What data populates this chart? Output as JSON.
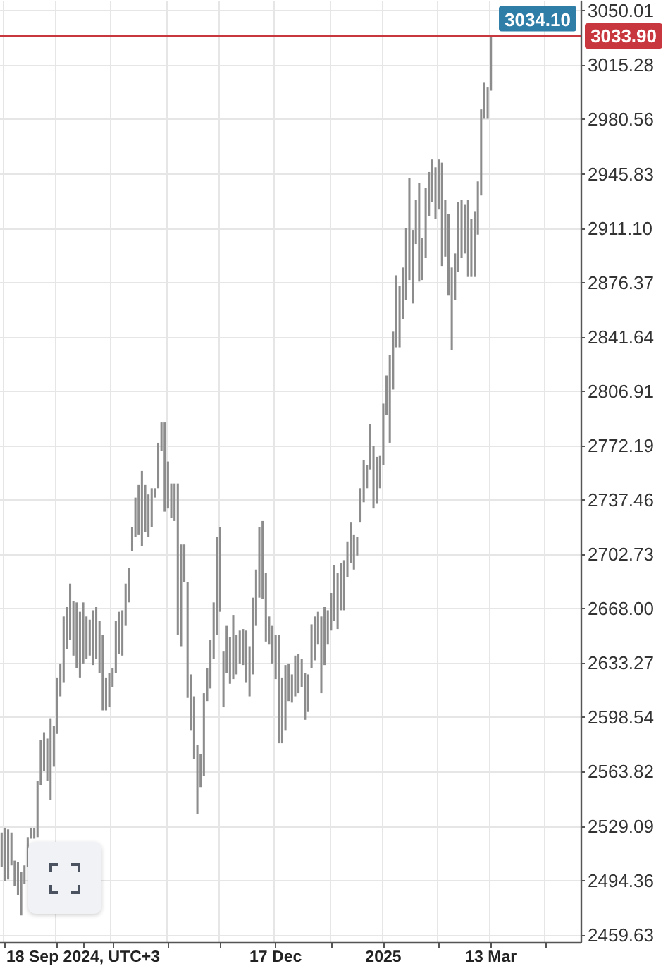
{
  "chart_data": {
    "type": "bar",
    "categories": [
      null,
      null,
      null,
      null,
      null,
      null,
      null,
      null,
      null,
      null,
      null,
      null,
      null,
      null,
      null,
      null,
      null,
      null,
      null,
      null,
      null,
      null,
      null,
      null,
      null,
      "18 Sep 2024, UTC+3",
      null,
      null,
      null,
      null,
      null,
      null,
      null,
      null,
      null,
      null,
      null,
      null,
      null,
      null,
      null,
      null,
      null,
      null,
      null,
      null,
      null,
      null,
      null,
      null,
      null,
      null,
      null,
      null,
      null,
      null,
      null,
      null,
      null,
      null,
      null,
      null,
      null,
      null,
      null,
      null,
      null,
      null,
      null,
      null,
      null,
      null,
      null,
      null,
      null,
      null,
      null,
      null,
      null,
      null,
      null,
      null,
      null,
      null,
      "17 Dec",
      null,
      null,
      null,
      null,
      null,
      null,
      null,
      null,
      null,
      null,
      null,
      null,
      null,
      null,
      null,
      null,
      null,
      null,
      null,
      null,
      null,
      null,
      null,
      null,
      null,
      null,
      null,
      null,
      null,
      null,
      null,
      null,
      "2025",
      null,
      null,
      null,
      null,
      null,
      null,
      null,
      null,
      null,
      null,
      null,
      null,
      null,
      null,
      null,
      null,
      null,
      null,
      null,
      null,
      null,
      null,
      null,
      null,
      null,
      null,
      null,
      null,
      null,
      null,
      null,
      null,
      "13 Mar",
      null,
      null,
      null,
      null,
      null,
      null,
      null,
      null,
      null,
      null,
      null,
      null,
      null,
      null,
      null,
      null,
      null,
      null,
      null,
      null,
      null,
      null,
      null,
      null,
      null,
      null,
      null
    ],
    "base": [
      2503,
      2494,
      2495,
      2504,
      2491,
      2485,
      2472,
      2492,
      2503,
      2521,
      2521,
      2522,
      2555,
      2564,
      2558,
      2546,
      2567,
      2588,
      2612,
      2621,
      2642,
      2648,
      2638,
      2630,
      2624,
      2633,
      2636,
      2638,
      2632,
      2636,
      2627,
      2603,
      2603,
      2605,
      2618,
      2627,
      2639,
      2638,
      2657,
      2672,
      2705,
      2714,
      2715,
      2708,
      2717,
      2714,
      2720,
      2739,
      2745,
      2769,
      2730,
      2732,
      2726,
      2724,
      2651,
      2644,
      2685,
      2611,
      2590,
      2572,
      2537,
      2554,
      2561,
      2609,
      2617,
      2636,
      2651,
      2666,
      2605,
      2627,
      2620,
      2623,
      2626,
      2633,
      2632,
      2621,
      2612,
      2626,
      2657,
      2675,
      2674,
      2647,
      2645,
      2633,
      2623,
      2582,
      2582,
      2590,
      2609,
      2608,
      2612,
      2614,
      2618,
      2597,
      2602,
      2630,
      2635,
      2645,
      2614,
      2632,
      2645,
      2654,
      2660,
      2655,
      2667,
      2667,
      2688,
      2697,
      2693,
      2702,
      2723,
      2736,
      2745,
      2757,
      2732,
      2735,
      2745,
      2760,
      2792,
      2774,
      2808,
      2835,
      2835,
      2853,
      2865,
      2878,
      2863,
      2901,
      2877,
      2878,
      2892,
      2919,
      2928,
      2917,
      2923,
      2887,
      2893,
      2868,
      2833,
      2865,
      2883,
      2892,
      2895,
      2880,
      2880,
      2880,
      2907,
      2932,
      2981,
      2981,
      2999,
      null,
      null,
      null,
      null,
      null,
      null,
      null,
      null,
      null,
      null,
      null,
      null,
      null,
      null,
      null,
      null,
      null,
      null,
      null,
      null,
      null,
      null,
      null,
      null,
      null,
      null,
      null
    ],
    "values": [
      22,
      34,
      32,
      21,
      16,
      21,
      28,
      12,
      19,
      7,
      7,
      36,
      29,
      25,
      27,
      52,
      26,
      36,
      21,
      42,
      27,
      36,
      35,
      42,
      42,
      39,
      27,
      23,
      35,
      33,
      33,
      48,
      21,
      22,
      12,
      33,
      27,
      29,
      27,
      22,
      15,
      25,
      32,
      48,
      30,
      27,
      25,
      6,
      29,
      18,
      57,
      30,
      22,
      24,
      97,
      65,
      24,
      74,
      36,
      40,
      44,
      21,
      53,
      21,
      31,
      36,
      63,
      54,
      36,
      30,
      30,
      41,
      25,
      21,
      23,
      33,
      32,
      49,
      36,
      45,
      50,
      44,
      18,
      24,
      28,
      69,
      42,
      42,
      24,
      18,
      26,
      25,
      18,
      30,
      24,
      28,
      28,
      21,
      49,
      37,
      22,
      24,
      36,
      36,
      30,
      32,
      23,
      26,
      22,
      12,
      22,
      27,
      15,
      29,
      40,
      30,
      21,
      39,
      25,
      56,
      37,
      46,
      39,
      33,
      46,
      65,
      47,
      28,
      63,
      27,
      45,
      28,
      27,
      33,
      32,
      66,
      36,
      52,
      53,
      30,
      45,
      37,
      31,
      49,
      37,
      42,
      34,
      55,
      23,
      20,
      35,
      null,
      null,
      null,
      null,
      null,
      null,
      null,
      null,
      null,
      null,
      null,
      null,
      null,
      null,
      null,
      null,
      null,
      null,
      null,
      null,
      null,
      null,
      null,
      null,
      null,
      null,
      null
    ],
    "color": "#8c8c8c",
    "ylim": [
      2455,
      3056
    ],
    "yticks": [
      2459.63,
      2494.36,
      2529.09,
      2563.82,
      2598.54,
      2633.27,
      {
        "value": 2668,
        "label": "2668.00"
      },
      2702.73,
      2737.46,
      2772.19,
      2806.91,
      2841.64,
      2876.37,
      {
        "value": 2911.1,
        "label": "2911.10"
      },
      2945.83,
      2980.56,
      3015.28,
      3050.01
    ],
    "grid": true,
    "ref_lines": [
      {
        "axis": "y",
        "value": 3033.9,
        "label": "3033.90",
        "color": "#c8373d"
      }
    ],
    "annotations": [
      {
        "text": "3034.10",
        "y": 3034.1
      }
    ]
  }
}
